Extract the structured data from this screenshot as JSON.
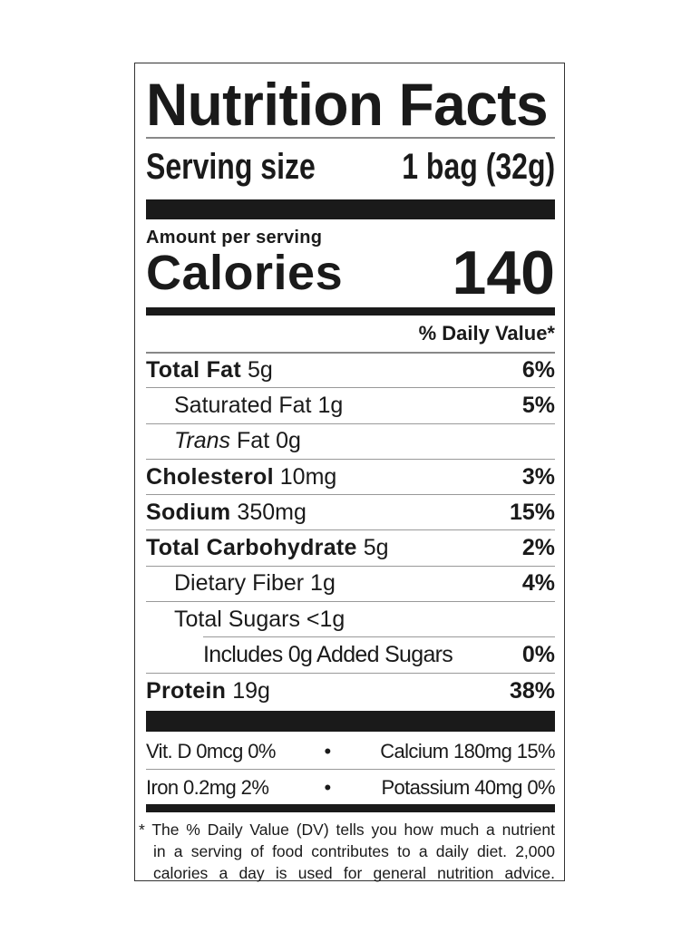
{
  "title": "Nutrition Facts",
  "serving": {
    "label": "Serving size",
    "value": "1 bag (32g)"
  },
  "amount_per_serving": "Amount per serving",
  "calories": {
    "label": "Calories",
    "value": "140"
  },
  "dv_header": "% Daily Value*",
  "nutrients": [
    {
      "name": "Total Fat",
      "amount": "5g",
      "dv": "6%"
    },
    {
      "name": "Saturated Fat",
      "amount": "1g",
      "dv": "5%"
    },
    {
      "name_italic": "Trans",
      "name": "Fat",
      "amount": "0g",
      "dv": ""
    },
    {
      "name": "Cholesterol",
      "amount": "10mg",
      "dv": "3%"
    },
    {
      "name": "Sodium",
      "amount": "350mg",
      "dv": "15%"
    },
    {
      "name": "Total Carbohydrate",
      "amount": "5g",
      "dv": "2%"
    },
    {
      "name": "Dietary Fiber",
      "amount": "1g",
      "dv": "4%"
    },
    {
      "name": "Total Sugars",
      "amount": "<1g",
      "dv": ""
    },
    {
      "name": "Includes 0g Added Sugars",
      "amount": "",
      "dv": "0%"
    },
    {
      "name": "Protein",
      "amount": "19g",
      "dv": "38%"
    }
  ],
  "vitamins": [
    {
      "left": "Vit. D 0mcg 0%",
      "sep": "•",
      "right": "Calcium 180mg 15%"
    },
    {
      "left": "Iron 0.2mg 2%",
      "sep": "•",
      "right": "Potassium 40mg 0%"
    }
  ],
  "footnote": [
    "* The % Daily Value (DV) tells you how much a nutrient",
    "in a serving of food contributes to a daily diet. 2,000",
    "calories a day is used for general nutrition advice."
  ]
}
